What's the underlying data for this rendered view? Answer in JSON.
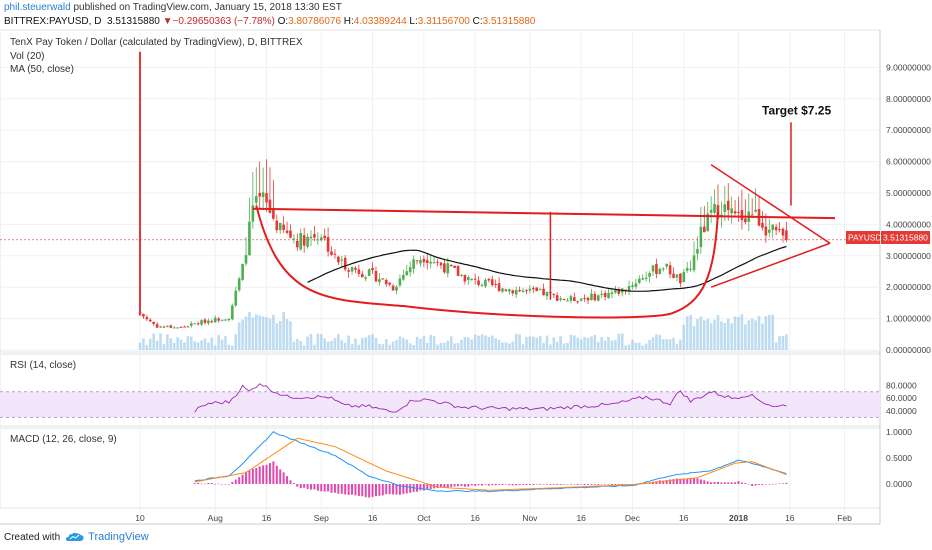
{
  "header": {
    "author": "phil.steuerwald",
    "published_text": "published on TradingView.com, January 15, 2018 13:30 EST",
    "symbol_line_prefix": "BITTREX:PAYUSD, D",
    "last": "3.51315880",
    "change_arrow": "▼",
    "change": "−0.29650363 (−7.78%)",
    "o_label": "O:",
    "o_val": "3.80786076",
    "h_label": "H:",
    "h_val": "4.03389244",
    "l_label": "L:",
    "l_val": "3.31156700",
    "c_label": "C:",
    "c_val": "3.51315880"
  },
  "chart_title": "TenX Pay Token / Dollar (calculated by TradingView), D, BITTREX",
  "indicators": {
    "vol": "Vol (20)",
    "ma": "MA (50, close)",
    "rsi": "RSI (14, close)",
    "macd": "MACD (12, 26, close, 9)"
  },
  "annotation": {
    "target": "Target $7.25"
  },
  "price_badge": {
    "symbol": "PAYUSD",
    "value": "3.51315880"
  },
  "footer": {
    "created_with": "Created with",
    "brand": "TradingView"
  },
  "colors": {
    "up": "#4caf50",
    "down": "#e53935",
    "drawing": "#e41c1c",
    "ma": "#111111",
    "vol": "#88bfe6",
    "rsi": "#9c27b0",
    "macd": "#2196f3",
    "signal": "#ff8c1a",
    "hist": "#d81b9c",
    "rsi_band": "#f3e6fb"
  },
  "chart_data": [
    {
      "type": "candlestick",
      "title": "TenX Pay Token / Dollar (calculated by TradingView), D, BITTREX",
      "y_axis_ticks": [
        "9.00000000",
        "8.00000000",
        "7.00000000",
        "6.00000000",
        "5.00000000",
        "4.00000000",
        "3.00000000",
        "2.00000000",
        "1.00000000",
        "0.00000000"
      ],
      "ylim": [
        0,
        9.6
      ],
      "x_axis_ticks": [
        "10",
        "Aug",
        "16",
        "Sep",
        "16",
        "Oct",
        "16",
        "Nov",
        "16",
        "Dec",
        "16",
        "2018",
        "16",
        "Feb"
      ],
      "close_keyframes": [
        {
          "date": "2017-07-10",
          "close": 1.15
        },
        {
          "date": "2017-07-15",
          "close": 0.75
        },
        {
          "date": "2017-07-22",
          "close": 0.72
        },
        {
          "date": "2017-07-29",
          "close": 0.92
        },
        {
          "date": "2017-08-05",
          "close": 1.05
        },
        {
          "date": "2017-08-09",
          "close": 2.6
        },
        {
          "date": "2017-08-12",
          "close": 4.5
        },
        {
          "date": "2017-08-15",
          "close": 4.8
        },
        {
          "date": "2017-08-20",
          "close": 3.8
        },
        {
          "date": "2017-08-25",
          "close": 3.5
        },
        {
          "date": "2017-09-01",
          "close": 3.7
        },
        {
          "date": "2017-09-05",
          "close": 2.9
        },
        {
          "date": "2017-09-10",
          "close": 2.6
        },
        {
          "date": "2017-09-18",
          "close": 2.3
        },
        {
          "date": "2017-09-22",
          "close": 2.0
        },
        {
          "date": "2017-09-28",
          "close": 2.8
        },
        {
          "date": "2017-10-01",
          "close": 3.0
        },
        {
          "date": "2017-10-08",
          "close": 2.6
        },
        {
          "date": "2017-10-15",
          "close": 2.2
        },
        {
          "date": "2017-10-25",
          "close": 1.95
        },
        {
          "date": "2017-11-05",
          "close": 1.8
        },
        {
          "date": "2017-11-12",
          "close": 1.6
        },
        {
          "date": "2017-11-20",
          "close": 1.7
        },
        {
          "date": "2017-11-28",
          "close": 1.9
        },
        {
          "date": "2017-12-05",
          "close": 2.4
        },
        {
          "date": "2017-12-10",
          "close": 2.7
        },
        {
          "date": "2017-12-15",
          "close": 2.2
        },
        {
          "date": "2017-12-18",
          "close": 2.6
        },
        {
          "date": "2017-12-21",
          "close": 3.7
        },
        {
          "date": "2017-12-24",
          "close": 4.3
        },
        {
          "date": "2017-12-27",
          "close": 4.6
        },
        {
          "date": "2017-12-31",
          "close": 4.2
        },
        {
          "date": "2018-01-05",
          "close": 4.4
        },
        {
          "date": "2018-01-10",
          "close": 3.8
        },
        {
          "date": "2018-01-15",
          "close": 3.51
        }
      ],
      "annotations": [
        "Target $7.25"
      ]
    },
    {
      "type": "line",
      "name": "RSI (14, close)",
      "y_axis_ticks": [
        "80.0000",
        "60.0000",
        "40.0000"
      ],
      "band": [
        30,
        70
      ],
      "ylim": [
        22,
        86
      ],
      "keyframes": [
        {
          "date": "2017-07-26",
          "value": 40
        },
        {
          "date": "2017-07-30",
          "value": 52
        },
        {
          "date": "2017-08-05",
          "value": 54
        },
        {
          "date": "2017-08-09",
          "value": 78
        },
        {
          "date": "2017-08-11",
          "value": 70
        },
        {
          "date": "2017-08-14",
          "value": 84
        },
        {
          "date": "2017-08-17",
          "value": 74
        },
        {
          "date": "2017-08-22",
          "value": 62
        },
        {
          "date": "2017-09-03",
          "value": 62
        },
        {
          "date": "2017-09-08",
          "value": 48
        },
        {
          "date": "2017-09-15",
          "value": 47
        },
        {
          "date": "2017-09-22",
          "value": 38
        },
        {
          "date": "2017-09-28",
          "value": 58
        },
        {
          "date": "2017-10-03",
          "value": 57
        },
        {
          "date": "2017-10-12",
          "value": 46
        },
        {
          "date": "2017-10-22",
          "value": 44
        },
        {
          "date": "2017-11-05",
          "value": 43
        },
        {
          "date": "2017-11-15",
          "value": 47
        },
        {
          "date": "2017-11-25",
          "value": 50
        },
        {
          "date": "2017-12-05",
          "value": 62
        },
        {
          "date": "2017-12-12",
          "value": 52
        },
        {
          "date": "2017-12-15",
          "value": 72
        },
        {
          "date": "2017-12-18",
          "value": 55
        },
        {
          "date": "2017-12-24",
          "value": 70
        },
        {
          "date": "2017-12-30",
          "value": 60
        },
        {
          "date": "2018-01-04",
          "value": 66
        },
        {
          "date": "2018-01-09",
          "value": 52
        },
        {
          "date": "2018-01-12",
          "value": 46
        },
        {
          "date": "2018-01-15",
          "value": 50
        }
      ]
    },
    {
      "type": "line",
      "name": "MACD (12, 26, close, 9)",
      "y_axis_ticks": [
        "1.0000",
        "0.5000",
        "0.0000"
      ],
      "ylim": [
        -0.24,
        1.1
      ],
      "macd_keyframes": [
        {
          "date": "2017-07-26",
          "value": 0.06
        },
        {
          "date": "2017-08-05",
          "value": 0.16
        },
        {
          "date": "2017-08-10",
          "value": 0.45
        },
        {
          "date": "2017-08-18",
          "value": 1.0
        },
        {
          "date": "2017-08-25",
          "value": 0.82
        },
        {
          "date": "2017-09-05",
          "value": 0.55
        },
        {
          "date": "2017-09-15",
          "value": 0.15
        },
        {
          "date": "2017-09-25",
          "value": -0.05
        },
        {
          "date": "2017-10-05",
          "value": -0.13
        },
        {
          "date": "2017-10-20",
          "value": -0.14
        },
        {
          "date": "2017-11-10",
          "value": -0.08
        },
        {
          "date": "2017-12-01",
          "value": -0.03
        },
        {
          "date": "2017-12-12",
          "value": 0.16
        },
        {
          "date": "2017-12-24",
          "value": 0.26
        },
        {
          "date": "2018-01-01",
          "value": 0.46
        },
        {
          "date": "2018-01-08",
          "value": 0.34
        },
        {
          "date": "2018-01-15",
          "value": 0.2
        }
      ],
      "signal_keyframes": [
        {
          "date": "2017-07-26",
          "value": 0.04
        },
        {
          "date": "2017-08-10",
          "value": 0.22
        },
        {
          "date": "2017-08-25",
          "value": 0.88
        },
        {
          "date": "2017-09-05",
          "value": 0.72
        },
        {
          "date": "2017-09-20",
          "value": 0.25
        },
        {
          "date": "2017-10-05",
          "value": -0.06
        },
        {
          "date": "2017-10-20",
          "value": -0.12
        },
        {
          "date": "2017-11-10",
          "value": -0.07
        },
        {
          "date": "2017-12-01",
          "value": -0.01
        },
        {
          "date": "2017-12-20",
          "value": 0.12
        },
        {
          "date": "2017-12-31",
          "value": 0.4
        },
        {
          "date": "2018-01-05",
          "value": 0.43
        },
        {
          "date": "2018-01-15",
          "value": 0.18
        }
      ]
    }
  ]
}
